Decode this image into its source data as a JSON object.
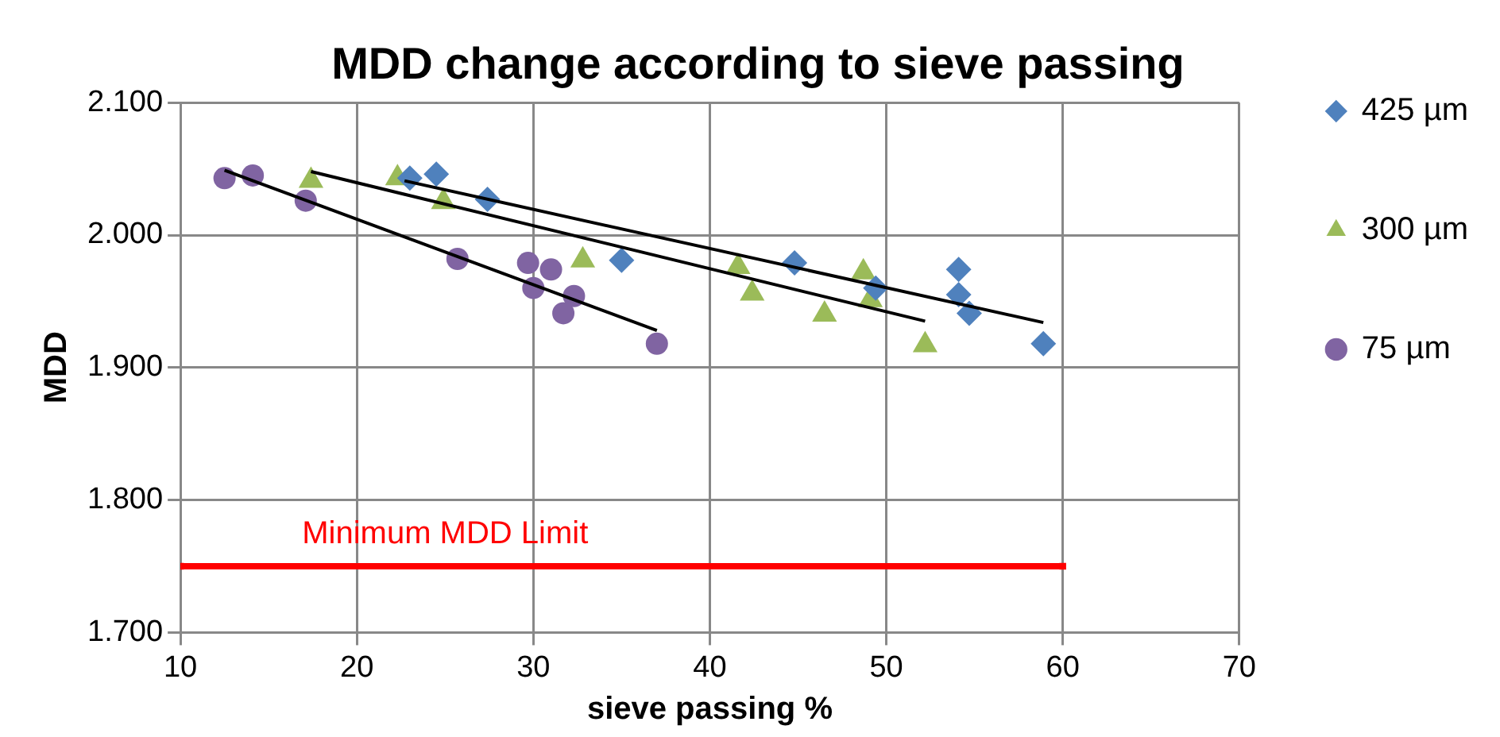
{
  "chart_data": {
    "type": "scatter",
    "title": "MDD change according to sieve passing",
    "xlabel": "sieve passing %",
    "ylabel": "MDD",
    "xlim": [
      10,
      70
    ],
    "xticks": [
      10,
      20,
      30,
      40,
      50,
      60,
      70
    ],
    "ylim": [
      1.7,
      2.1
    ],
    "yticks": [
      {
        "value": 1.7,
        "label": "1.700"
      },
      {
        "value": 1.8,
        "label": "1.800"
      },
      {
        "value": 1.9,
        "label": "1.900"
      },
      {
        "value": 2.0,
        "label": "2.000"
      },
      {
        "value": 2.1,
        "label": "2.100"
      }
    ],
    "grid": true,
    "legend": "right",
    "annotations": [
      "Minimum MDD Limit"
    ],
    "series": [
      {
        "name": "425 µm",
        "color": "#4f81bd",
        "marker": "diamond",
        "x": [
          23.0,
          24.5,
          27.4,
          35.0,
          44.8,
          49.4,
          54.1,
          54.1,
          54.7,
          58.9
        ],
        "values": [
          2.043,
          2.046,
          2.027,
          1.981,
          1.979,
          1.96,
          1.974,
          1.955,
          1.941,
          1.918
        ]
      },
      {
        "name": "300 µm",
        "color": "#9bbb59",
        "marker": "triangle",
        "x": [
          17.4,
          22.3,
          24.9,
          32.8,
          41.6,
          42.4,
          46.5,
          48.7,
          49.1,
          52.2
        ],
        "values": [
          2.041,
          2.043,
          2.025,
          1.981,
          1.976,
          1.956,
          1.94,
          1.972,
          1.951,
          1.917
        ]
      },
      {
        "name": "75 µm",
        "color": "#8064a2",
        "marker": "circle",
        "x": [
          12.5,
          14.1,
          17.1,
          25.7,
          29.7,
          31.0,
          30.0,
          32.3,
          31.7,
          37.0
        ],
        "values": [
          2.043,
          2.045,
          2.026,
          1.982,
          1.979,
          1.974,
          1.96,
          1.954,
          1.941,
          1.918
        ]
      },
      {
        "type": "line",
        "color": "#000000",
        "marker": "none",
        "x": [
          22.7,
          58.9
        ],
        "values": [
          2.041,
          1.934
        ]
      },
      {
        "type": "line",
        "color": "#000000",
        "marker": "none",
        "x": [
          17.4,
          52.2
        ],
        "values": [
          2.048,
          1.935
        ]
      },
      {
        "type": "line",
        "color": "#000000",
        "marker": "none",
        "x": [
          12.5,
          37.0
        ],
        "values": [
          2.049,
          1.928
        ]
      },
      {
        "type": "line",
        "color": "#ff0000",
        "marker": "square",
        "x": [
          10,
          60
        ],
        "values": [
          1.75,
          1.75
        ]
      }
    ]
  }
}
